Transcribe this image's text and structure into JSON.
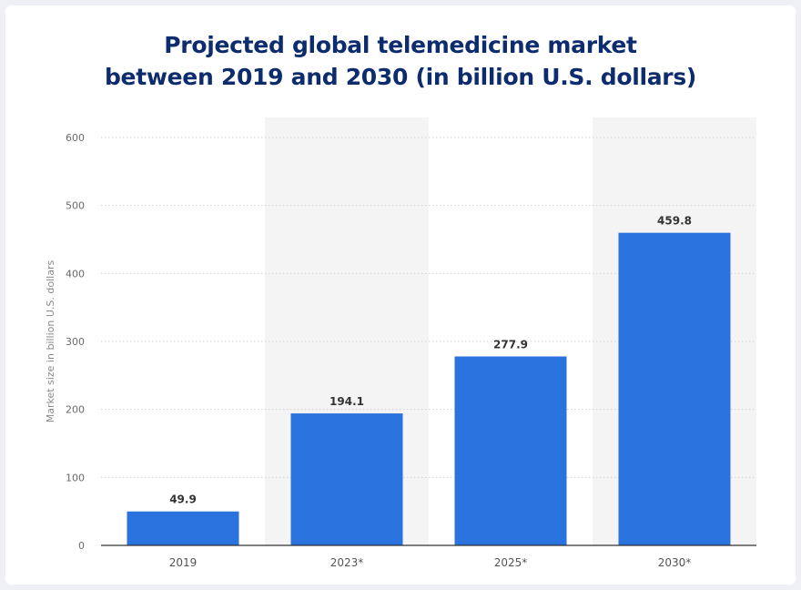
{
  "chart_data": {
    "type": "bar",
    "title_lines": [
      "Projected global telemedicine market",
      "between 2019 and 2030 (in billion U.S. dollars)"
    ],
    "xlabel": "",
    "ylabel": "Market size in billion U.S. dollars",
    "categories": [
      "2019",
      "2023*",
      "2025*",
      "2030*"
    ],
    "values": [
      49.9,
      194.1,
      277.9,
      459.8
    ],
    "value_labels": [
      "49.9",
      "194.1",
      "277.9",
      "459.8"
    ],
    "ylim": [
      0,
      600
    ],
    "yticks": [
      0,
      100,
      200,
      300,
      400,
      500,
      600
    ],
    "ytick_labels": [
      "0",
      "100",
      "200",
      "300",
      "400",
      "500",
      "600"
    ],
    "grid": true,
    "grid_style": "dotted",
    "legend": "none",
    "colors": {
      "bar": "#2a72dd",
      "title": "#0d2c6e",
      "band": "#f4f4f4",
      "axis": "#333333",
      "grid": "#cfcfcf"
    }
  }
}
